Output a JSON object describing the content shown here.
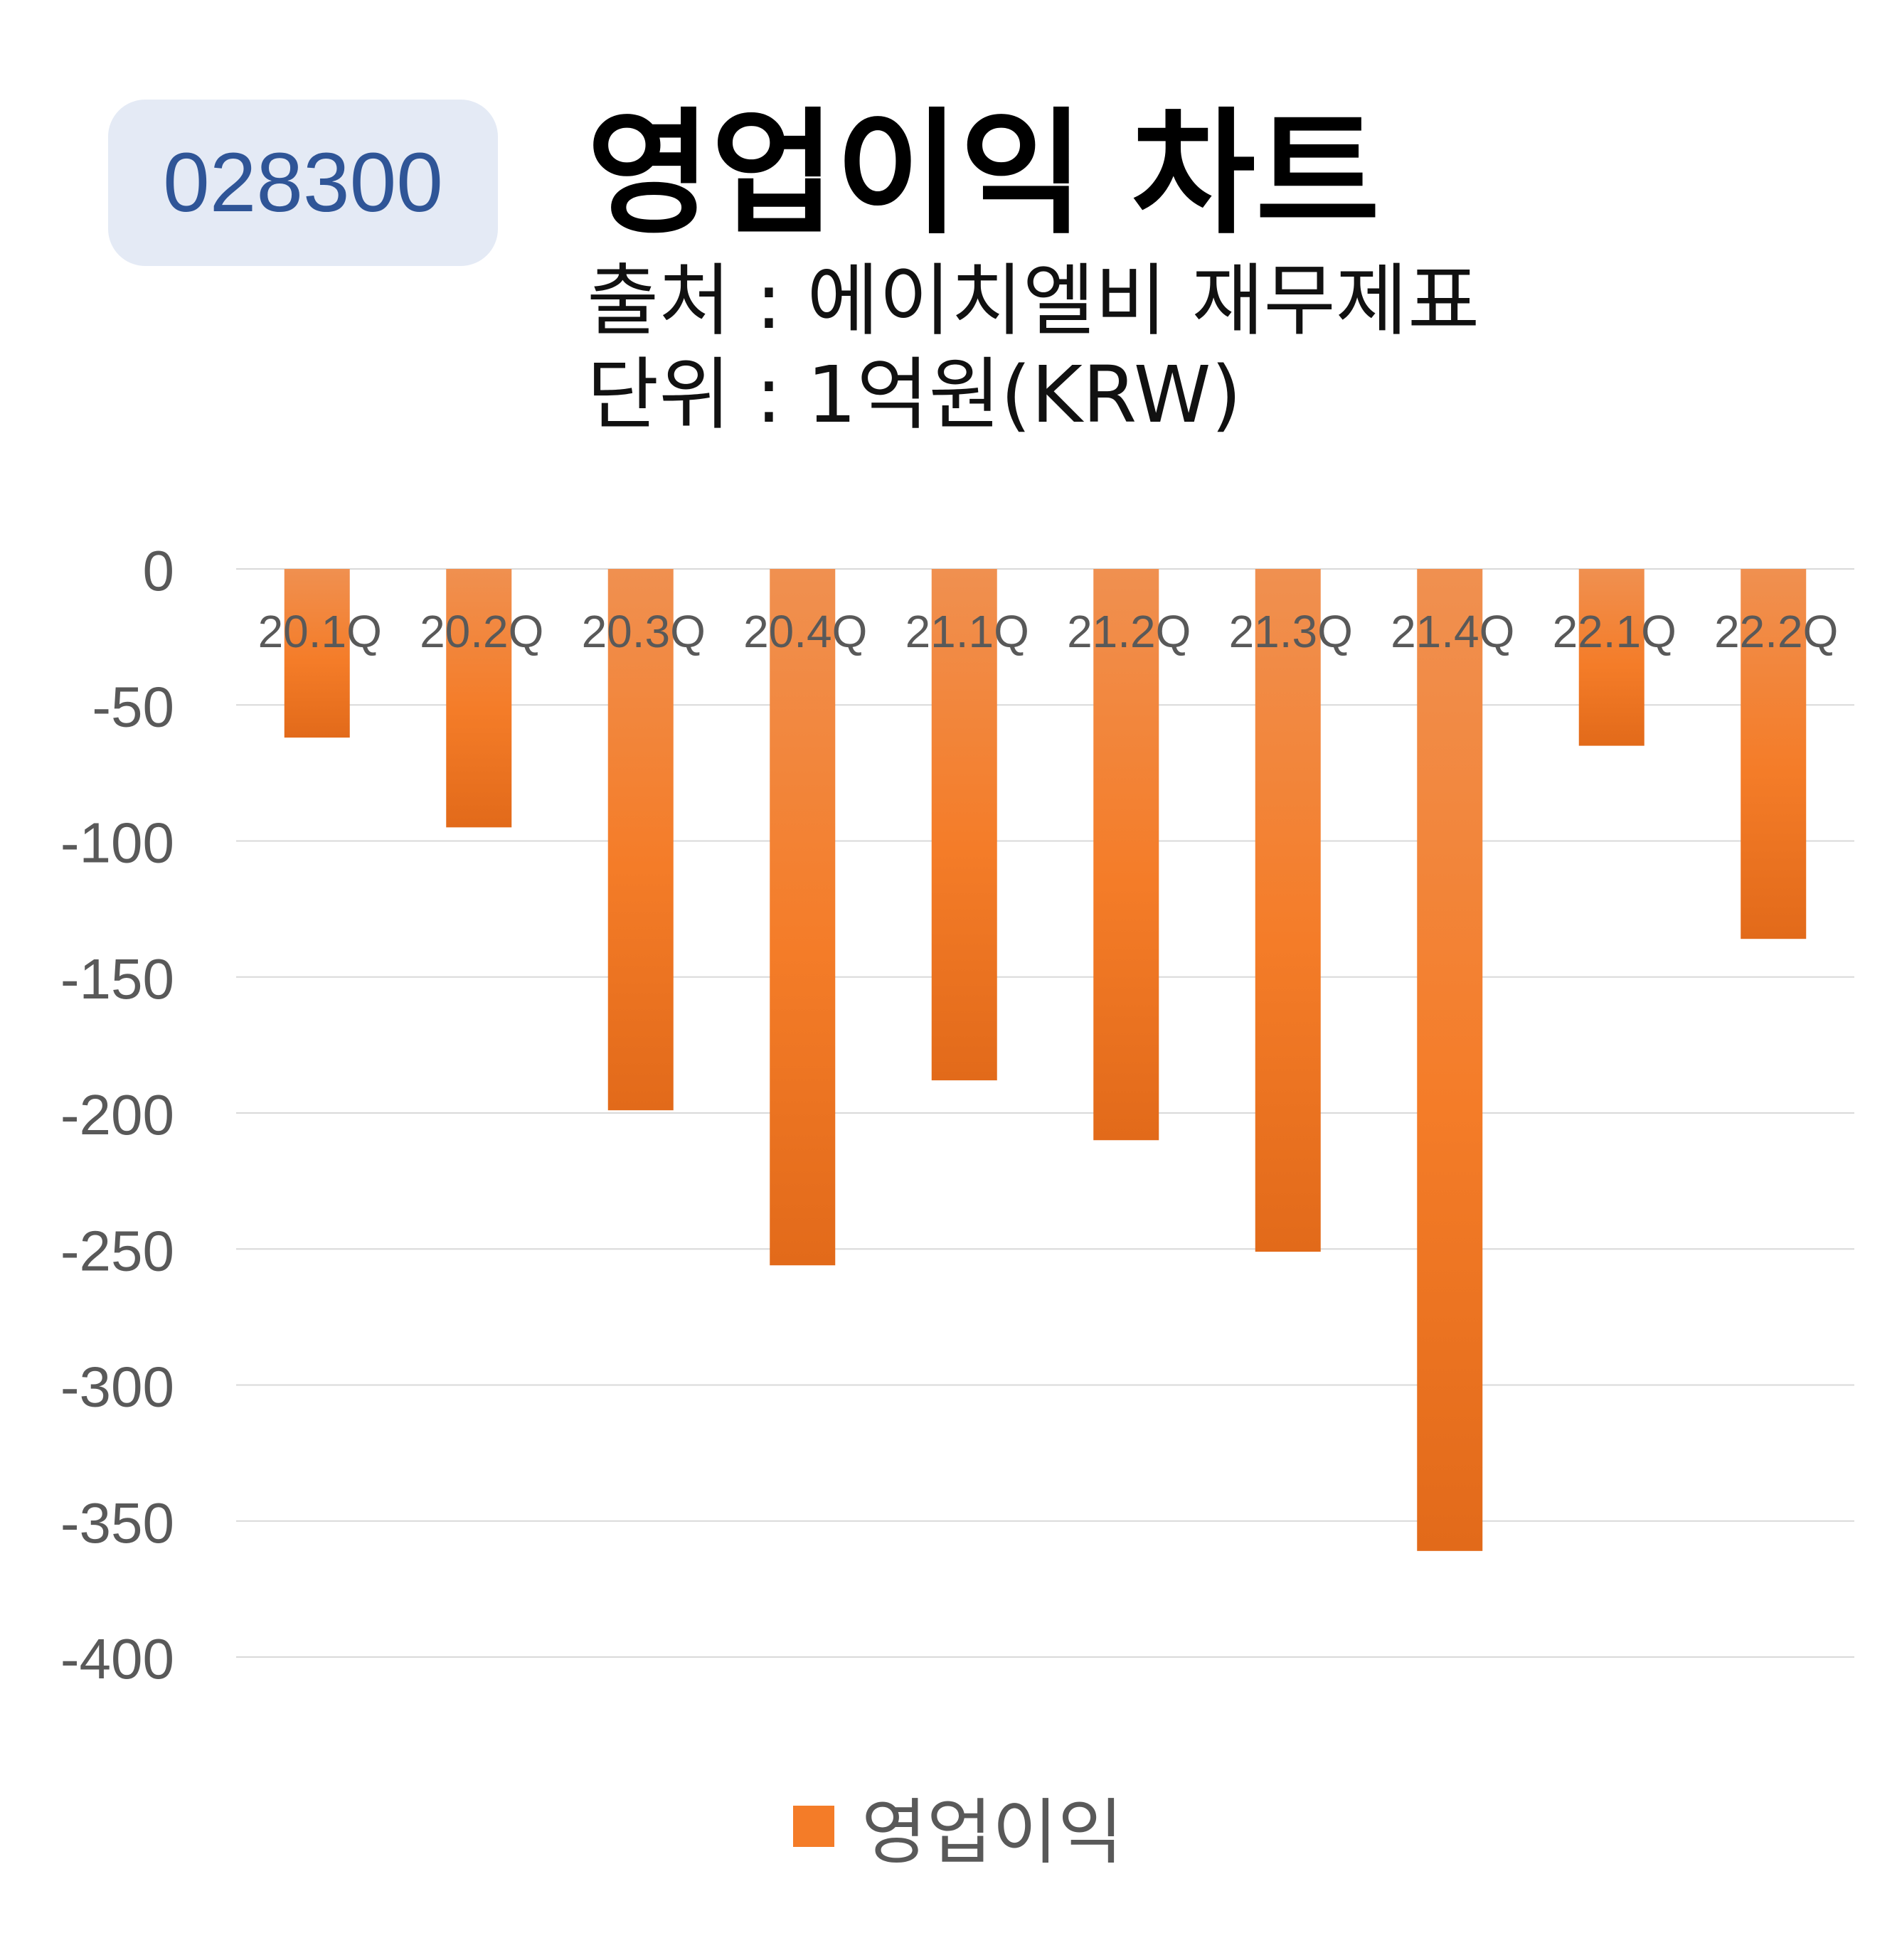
{
  "ticker": "028300",
  "title": "영업이익 차트",
  "source": "출처 : 에이치엘비 재무제표",
  "unit": "단위 : 1억원(KRW)",
  "colors": {
    "bar_top": "#f09050",
    "bar_mid": "#f47c28",
    "bar_bottom": "#e26a1a",
    "grid": "#d9d9d9",
    "axis_text": "#595959",
    "badge_bg": "#e4eaf5",
    "badge_text": "#2f5597"
  },
  "chart_data": {
    "type": "bar",
    "categories": [
      "20.1Q",
      "20.2Q",
      "20.3Q",
      "20.4Q",
      "21.1Q",
      "21.2Q",
      "21.3Q",
      "21.4Q",
      "22.1Q",
      "22.2Q"
    ],
    "series": [
      {
        "name": "영업이익",
        "values": [
          -62,
          -95,
          -199,
          -256,
          -188,
          -210,
          -251,
          -361,
          -65,
          -136
        ]
      }
    ],
    "ylim": [
      -400,
      0
    ],
    "yticks": [
      0,
      -50,
      -100,
      -150,
      -200,
      -250,
      -300,
      -350,
      -400
    ],
    "grid": true,
    "legend": "bottom-center",
    "xlabel": "",
    "ylabel": ""
  }
}
